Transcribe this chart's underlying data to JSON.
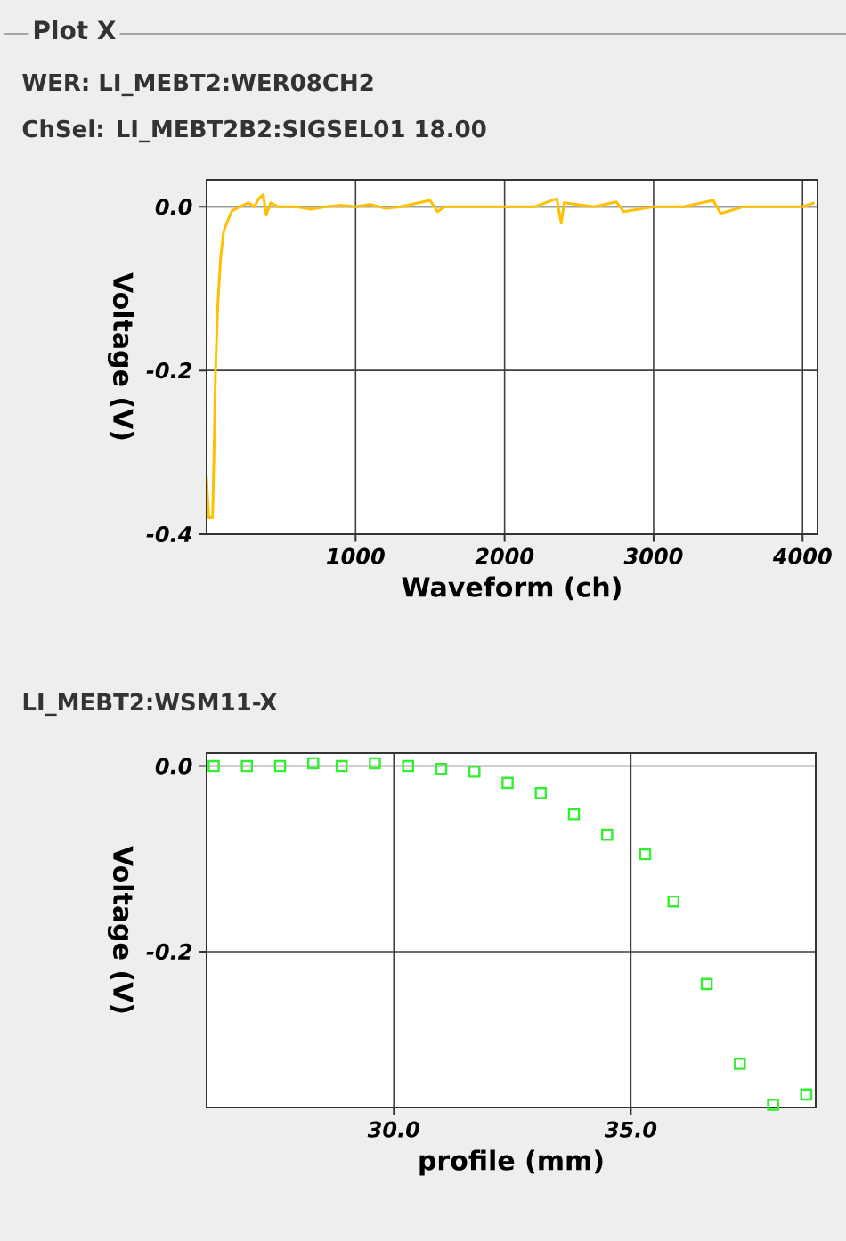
{
  "chart_data": [
    {
      "type": "line",
      "title": "Plot X",
      "annotations": [
        "WER: LI_MEBT2:WER08CH2",
        "ChSel: LI_MEBT2B2:SIGSEL01 18.00"
      ],
      "xlabel": "Waveform (ch)",
      "ylabel": "Voltage (V)",
      "xlim": [
        0,
        4100
      ],
      "ylim": [
        -0.4,
        0.033
      ],
      "xticks": [
        1000,
        2000,
        3000,
        4000
      ],
      "yticks": [
        {
          "value": 0,
          "label": "0.0"
        },
        {
          "value": -0.2,
          "label": "-0.2"
        },
        {
          "value": -0.4,
          "label": "-0.4"
        }
      ],
      "grid": true,
      "series": [
        {
          "color": "#ffc000",
          "x": [
            0,
            8,
            15,
            40,
            50,
            60,
            75,
            95,
            115,
            135,
            170,
            220,
            280,
            320,
            350,
            380,
            400,
            430,
            480,
            600,
            700,
            800,
            900,
            1000,
            1100,
            1200,
            1300,
            1500,
            1550,
            1600,
            1800,
            2000,
            2200,
            2350,
            2380,
            2400,
            2600,
            2750,
            2800,
            3000,
            3200,
            3400,
            3450,
            3600,
            3800,
            4000,
            4080
          ],
          "values": [
            -0.33,
            -0.36,
            -0.38,
            -0.38,
            -0.3,
            -0.2,
            -0.12,
            -0.06,
            -0.03,
            -0.02,
            -0.005,
            0.0,
            0.005,
            0.0,
            0.01,
            0.015,
            -0.01,
            0.005,
            0.0,
            0.0,
            -0.003,
            0.0,
            0.002,
            0.0,
            0.003,
            -0.002,
            0.0,
            0.008,
            -0.006,
            0.0,
            0.0,
            0.0,
            0.0,
            0.01,
            -0.02,
            0.005,
            0.0,
            0.006,
            -0.006,
            0.0,
            0.0,
            0.008,
            -0.008,
            0.0,
            0.0,
            0.0,
            0.005
          ]
        }
      ]
    },
    {
      "type": "scatter",
      "title": "LI_MEBT2:WSM11-X",
      "xlabel": "profile (mm)",
      "ylabel": "Voltage (V)",
      "xlim": [
        26.05,
        38.9
      ],
      "ylim": [
        -0.368,
        0.014
      ],
      "xticks": [
        {
          "value": 30,
          "label": "30.0"
        },
        {
          "value": 35,
          "label": "35.0"
        }
      ],
      "yticks": [
        {
          "value": 0,
          "label": "0.0"
        },
        {
          "value": -0.2,
          "label": "-0.2"
        }
      ],
      "grid": true,
      "marker": "square",
      "series": [
        {
          "color": "#33ee33",
          "x": [
            26.2,
            26.9,
            27.6,
            28.3,
            28.9,
            29.6,
            30.3,
            31.0,
            31.7,
            32.4,
            33.1,
            33.8,
            34.5,
            35.3,
            35.9,
            36.6,
            37.3,
            38.0,
            38.7
          ],
          "values": [
            0,
            0,
            0,
            0.003,
            0,
            0.003,
            0,
            -0.003,
            -0.006,
            -0.018,
            -0.029,
            -0.052,
            -0.074,
            -0.095,
            -0.146,
            -0.235,
            -0.321,
            -0.365,
            -0.354
          ]
        }
      ]
    }
  ]
}
